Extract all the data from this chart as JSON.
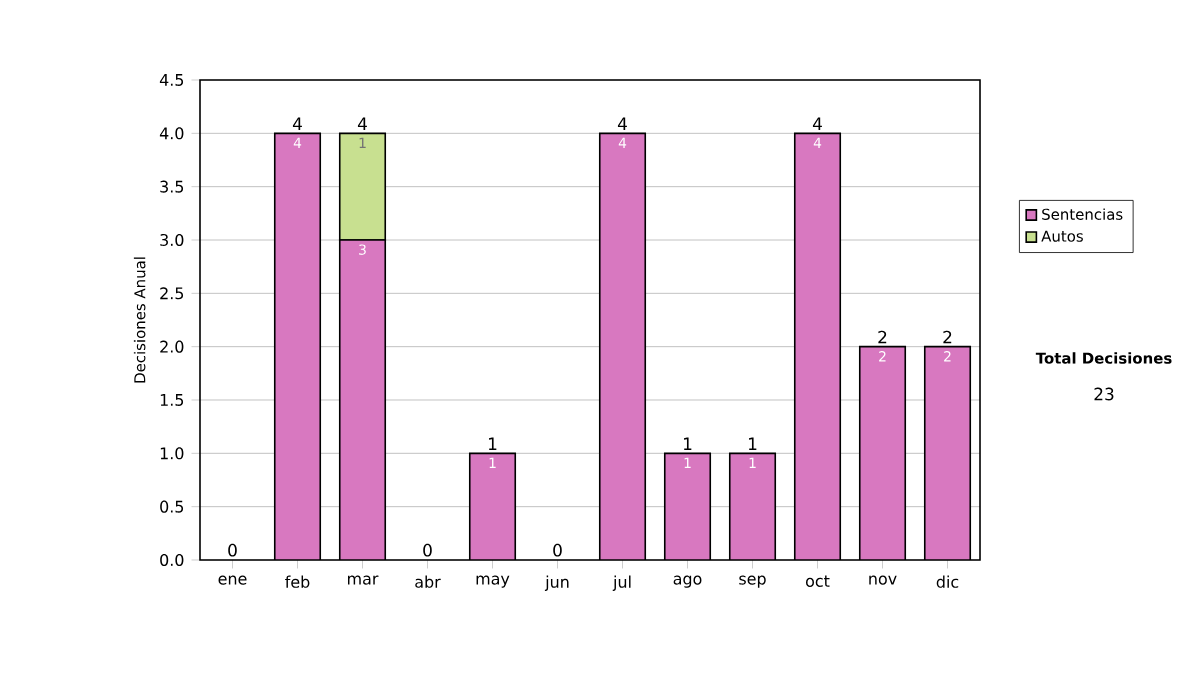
{
  "chart_data": {
    "type": "bar",
    "stacked": true,
    "ylabel": "Decisiones Anual",
    "categories": [
      "ene",
      "feb",
      "mar",
      "abr",
      "may",
      "jun",
      "jul",
      "ago",
      "sep",
      "oct",
      "nov",
      "dic"
    ],
    "series": [
      {
        "name": "Sentencias",
        "color": "#d878c0",
        "values": [
          0,
          4,
          3,
          0,
          1,
          0,
          4,
          1,
          1,
          4,
          2,
          2
        ],
        "value_labels": [
          null,
          "4",
          "3",
          null,
          "1",
          null,
          "4",
          "1",
          "1",
          "4",
          "2",
          "2"
        ]
      },
      {
        "name": "Autos",
        "color": "#c8e090",
        "values": [
          0,
          0,
          1,
          0,
          0,
          0,
          0,
          0,
          0,
          0,
          0,
          0
        ],
        "value_labels": [
          null,
          null,
          "1",
          null,
          null,
          null,
          null,
          null,
          null,
          null,
          null,
          null
        ]
      }
    ],
    "totals": [
      "0",
      "4",
      "4",
      "0",
      "1",
      "0",
      "4",
      "1",
      "1",
      "4",
      "2",
      "2"
    ],
    "ylim": [
      0,
      4.5
    ],
    "yticks": [
      {
        "value": 0,
        "label": "0.0"
      },
      0.5,
      {
        "value": 1,
        "label": "1.0"
      },
      1.5,
      {
        "value": 2,
        "label": "2.0"
      },
      2.5,
      {
        "value": 3,
        "label": "3.0"
      },
      3.5,
      {
        "value": 4,
        "label": "4.0"
      },
      4.5
    ],
    "grid": "y",
    "legend": "right",
    "annotations": [
      "Total Decisiones",
      "23"
    ]
  }
}
